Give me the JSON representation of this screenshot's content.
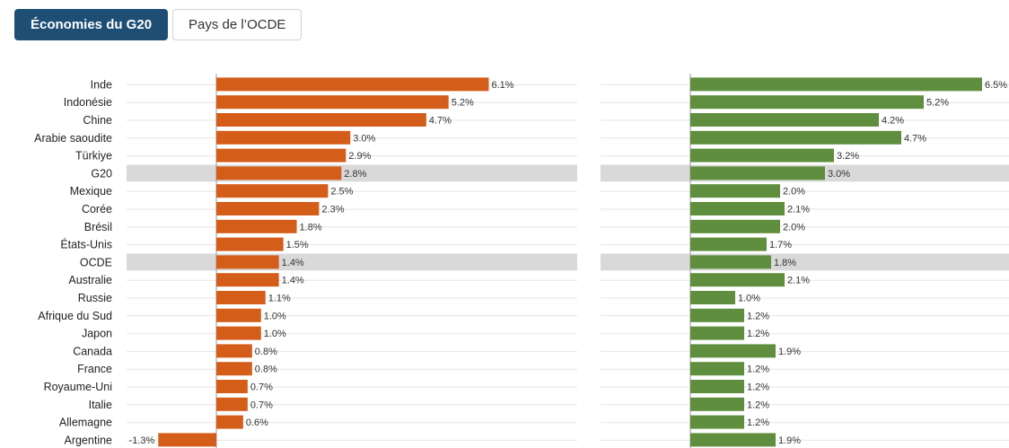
{
  "tabs": [
    {
      "label": "Économies du G20",
      "active": true
    },
    {
      "label": "Pays de l’OCDE",
      "active": false
    }
  ],
  "colors": {
    "left_series": "#d45d1a",
    "right_series": "#5f8f3e",
    "highlight_row": "#d9d9d9",
    "tab_active": "#1e4e74"
  },
  "chart_data": [
    {
      "type": "bar",
      "orientation": "horizontal",
      "highlighted": [
        "G20",
        "OCDE"
      ],
      "categories": [
        "Inde",
        "Indonésie",
        "Chine",
        "Arabie saoudite",
        "Türkiye",
        "G20",
        "Mexique",
        "Corée",
        "Brésil",
        "États-Unis",
        "OCDE",
        "Australie",
        "Russie",
        "Afrique du Sud",
        "Japon",
        "Canada",
        "France",
        "Royaume-Uni",
        "Italie",
        "Allemagne",
        "Argentine"
      ],
      "values": [
        6.1,
        5.2,
        4.7,
        3.0,
        2.9,
        2.8,
        2.5,
        2.3,
        1.8,
        1.5,
        1.4,
        1.4,
        1.1,
        1.0,
        1.0,
        0.8,
        0.8,
        0.7,
        0.7,
        0.6,
        -1.3
      ],
      "value_labels": [
        "6.1%",
        "5.2%",
        "4.7%",
        "3.0%",
        "2.9%",
        "2.8%",
        "2.5%",
        "2.3%",
        "1.8%",
        "1.5%",
        "1.4%",
        "1.4%",
        "1.1%",
        "1.0%",
        "1.0%",
        "0.8%",
        "0.8%",
        "0.7%",
        "0.7%",
        "0.6%",
        "-1.3%"
      ],
      "xlim": [
        -2.0,
        7.0
      ]
    },
    {
      "type": "bar",
      "orientation": "horizontal",
      "highlighted": [
        "G20",
        "OCDE"
      ],
      "categories": [
        "Inde",
        "Indonésie",
        "Chine",
        "Arabie saoudite",
        "Türkiye",
        "G20",
        "Mexique",
        "Corée",
        "Brésil",
        "États-Unis",
        "OCDE",
        "Australie",
        "Russie",
        "Afrique du Sud",
        "Japon",
        "Canada",
        "France",
        "Royaume-Uni",
        "Italie",
        "Allemagne",
        "Argentine"
      ],
      "values": [
        6.5,
        5.2,
        4.2,
        4.7,
        3.2,
        3.0,
        2.0,
        2.1,
        2.0,
        1.7,
        1.8,
        2.1,
        1.0,
        1.2,
        1.2,
        1.9,
        1.2,
        1.2,
        1.2,
        1.2,
        1.9
      ],
      "value_labels": [
        "6.5%",
        "5.2%",
        "4.2%",
        "4.7%",
        "3.2%",
        "3.0%",
        "2.0%",
        "2.1%",
        "2.0%",
        "1.7%",
        "1.8%",
        "2.1%",
        "1.0%",
        "1.2%",
        "1.2%",
        "1.9%",
        "1.2%",
        "1.2%",
        "1.2%",
        "1.2%",
        "1.9%"
      ],
      "xlim": [
        0,
        6.5
      ]
    }
  ]
}
